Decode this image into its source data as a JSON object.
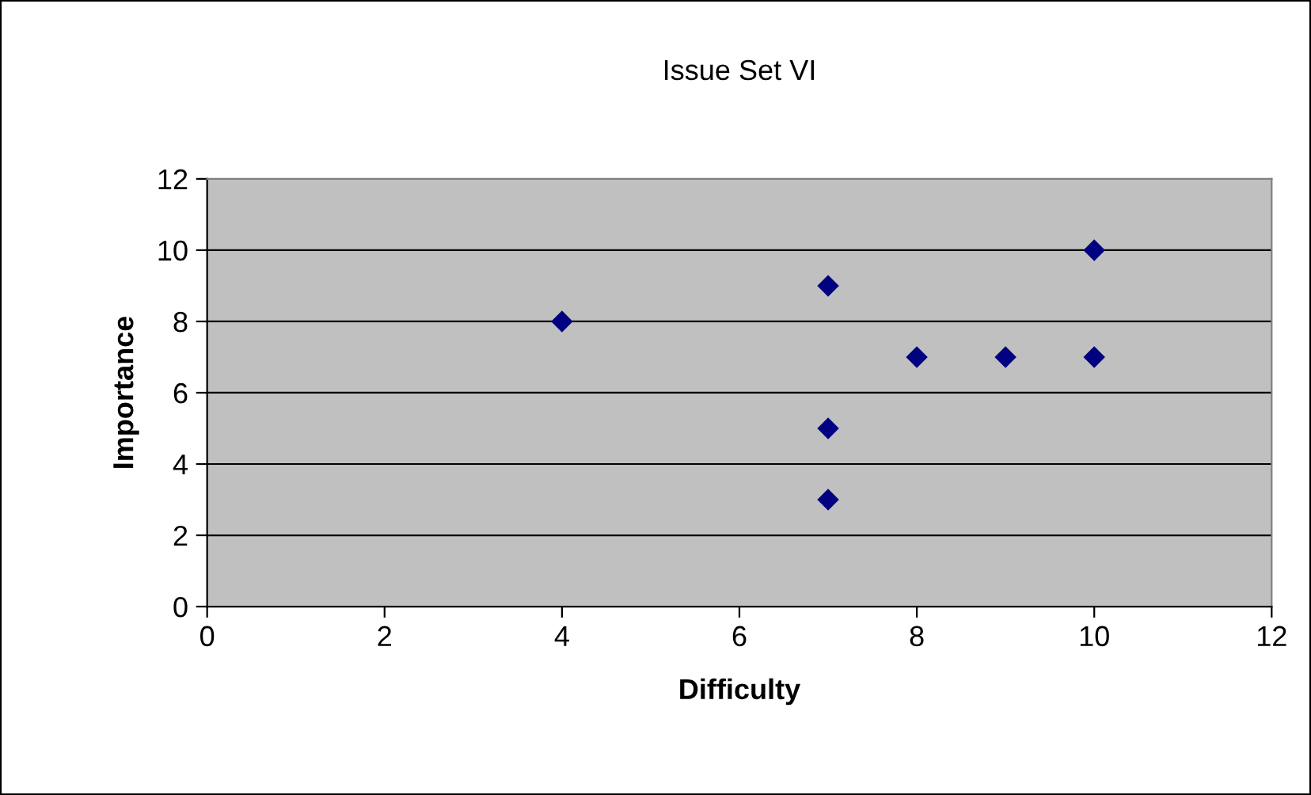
{
  "chart_data": {
    "type": "scatter",
    "title": "Issue Set VI",
    "xlabel": "Difficulty",
    "ylabel": "Importance",
    "x": [
      4,
      7,
      7,
      7,
      8,
      9,
      10,
      10
    ],
    "values": [
      8,
      9,
      5,
      3,
      7,
      7,
      10,
      7
    ],
    "color": "#000080",
    "marker": "diamond",
    "xlim": [
      0,
      12
    ],
    "xticks": [
      0,
      2,
      4,
      6,
      8,
      10,
      12
    ],
    "ylim": [
      0,
      12
    ],
    "yticks": [
      0,
      2,
      4,
      6,
      8,
      10,
      12
    ],
    "grid": "y",
    "legend": false
  }
}
